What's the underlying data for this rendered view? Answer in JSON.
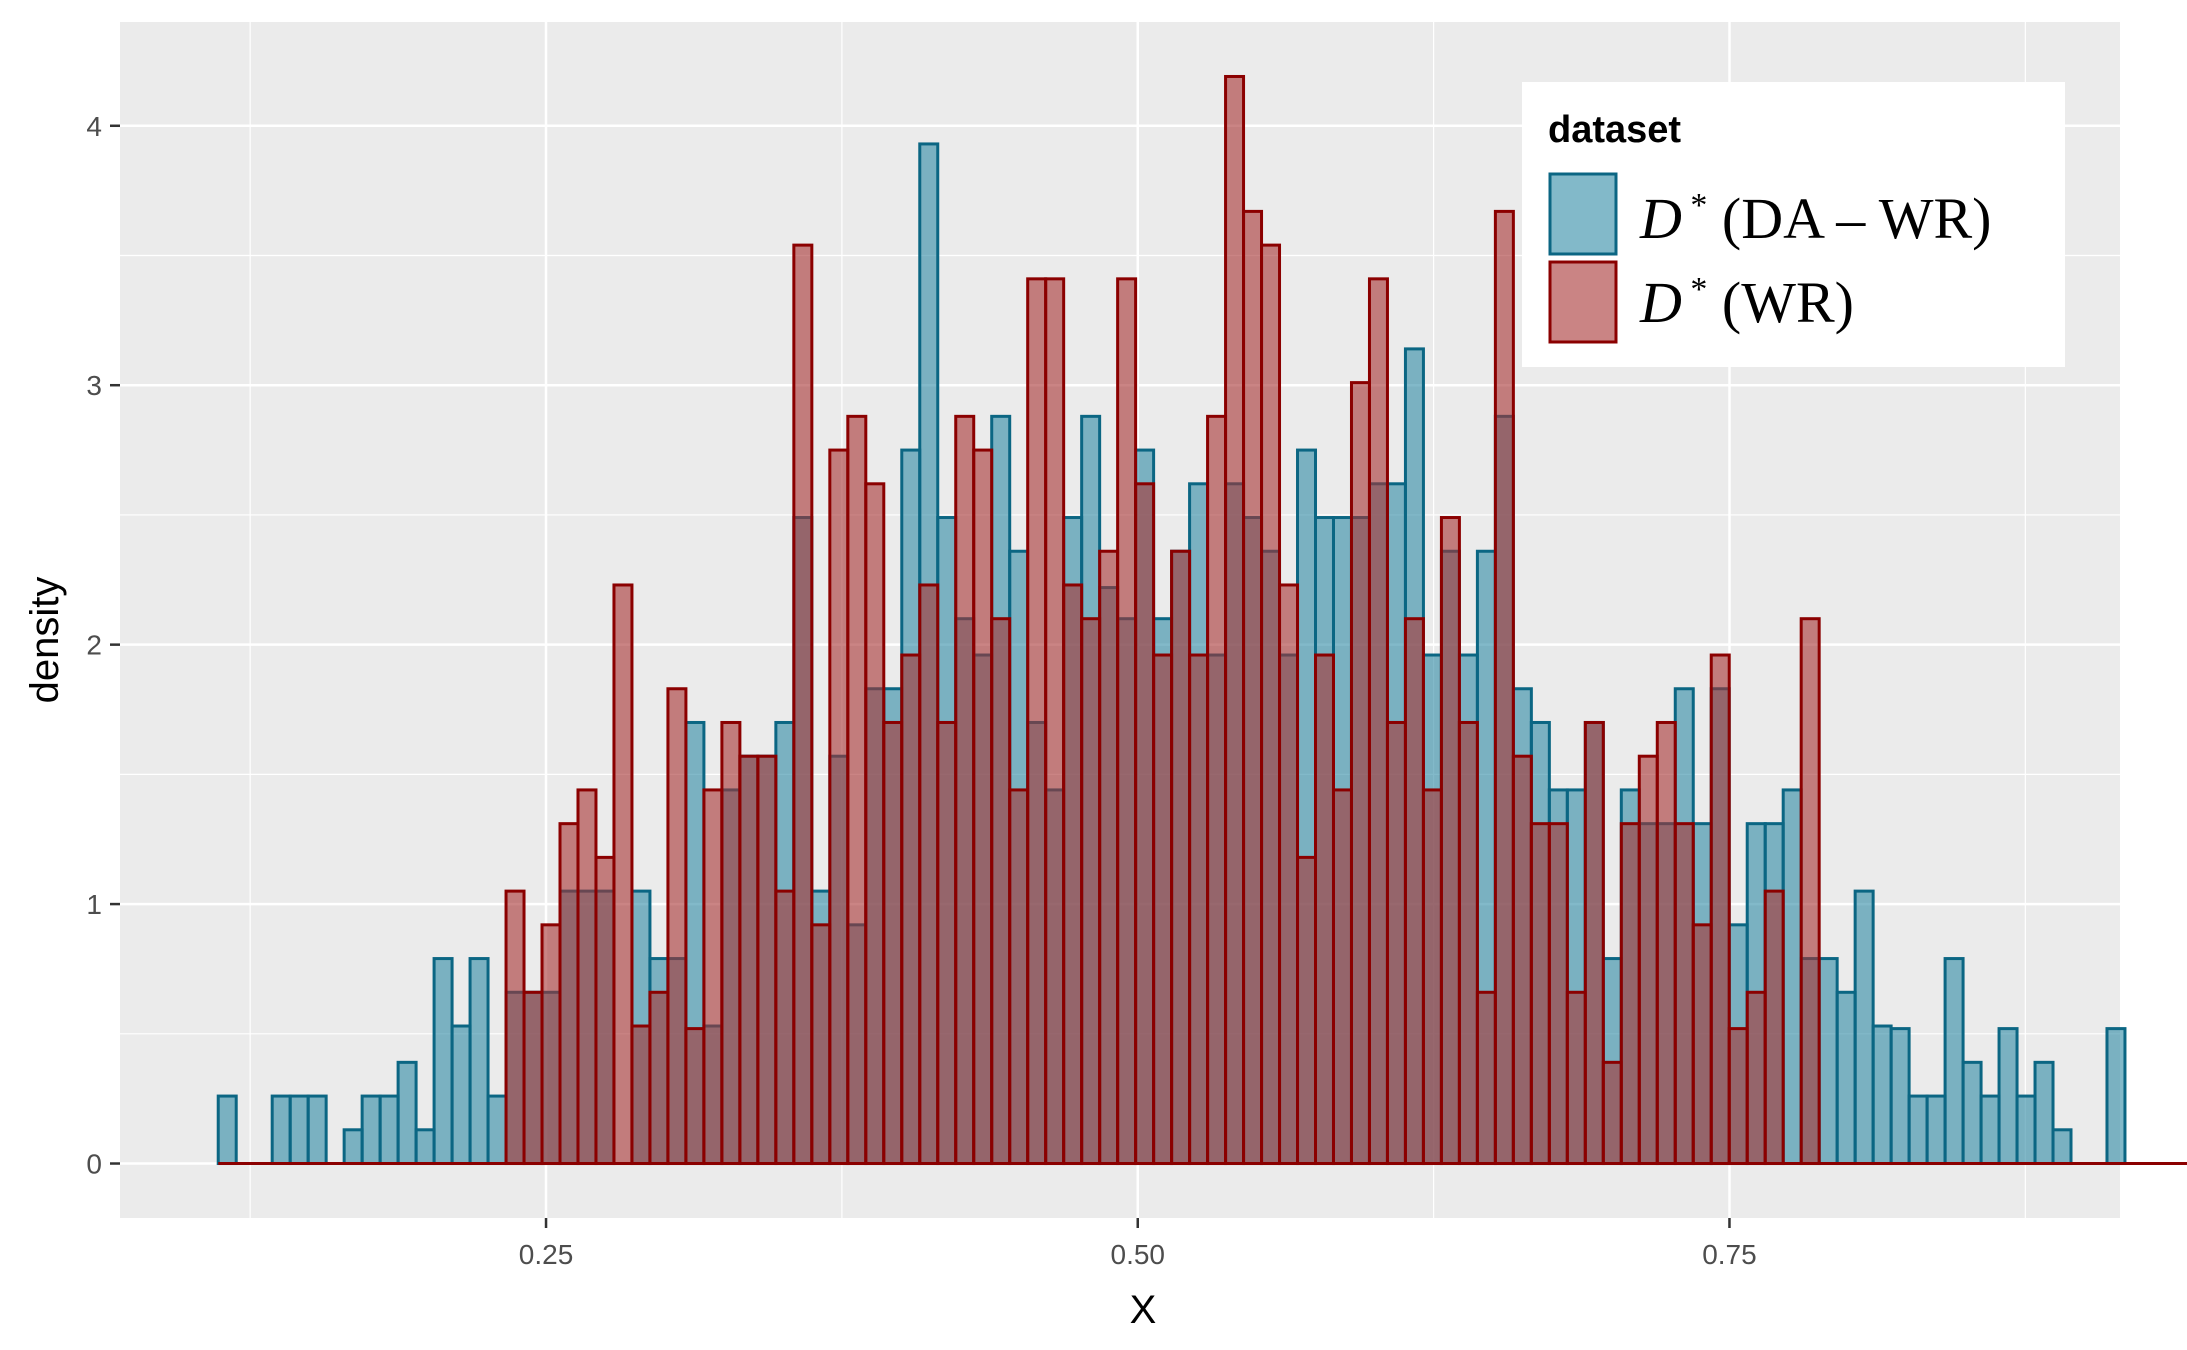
{
  "chart_data": {
    "type": "bar",
    "xlabel": "X",
    "ylabel": "density",
    "xlim": [
      0.07,
      0.915
    ],
    "ylim": [
      -0.21,
      4.4
    ],
    "x_ticks": [
      0.25,
      0.5,
      0.75
    ],
    "x_tick_labels": [
      "0.25",
      "0.50",
      "0.75"
    ],
    "y_ticks": [
      0,
      1,
      2,
      3,
      4
    ],
    "y_tick_labels": [
      "0",
      "1",
      "2",
      "3",
      "4"
    ],
    "grid": true,
    "bin_start": 0.1115,
    "bin_width": 0.0076,
    "legend": {
      "title": "dataset",
      "position": "top-right",
      "labels": [
        "D * (DA – WR)",
        "D * (WR)"
      ]
    },
    "series": [
      {
        "name": "D * (DA – WR)",
        "fill": "#2f8ba5",
        "stroke": "#0b6683",
        "values": [
          0.26,
          0,
          0,
          0.26,
          0.26,
          0.26,
          0,
          0.13,
          0.26,
          0.26,
          0.39,
          0.13,
          0.79,
          0.53,
          0.79,
          0.26,
          0.66,
          0.66,
          0.66,
          1.05,
          1.05,
          1.05,
          0,
          1.05,
          0.79,
          0.79,
          1.7,
          0.53,
          1.44,
          1.57,
          1.57,
          1.7,
          2.49,
          1.05,
          1.57,
          0.92,
          1.83,
          1.83,
          2.75,
          3.93,
          2.49,
          2.1,
          1.96,
          2.88,
          2.36,
          1.7,
          1.44,
          2.49,
          2.88,
          2.22,
          2.1,
          2.75,
          2.1,
          2.36,
          2.62,
          1.96,
          2.62,
          2.49,
          2.36,
          1.96,
          2.75,
          2.49,
          2.49,
          2.49,
          2.62,
          2.62,
          3.14,
          1.96,
          2.36,
          1.96,
          2.36,
          2.88,
          1.83,
          1.7,
          1.44,
          1.44,
          1.7,
          0.79,
          1.44,
          1.31,
          1.31,
          1.83,
          1.31,
          1.83,
          0.92,
          1.31,
          1.31,
          1.44,
          0.79,
          0.79,
          0.66,
          1.05,
          0.53,
          0.52,
          0.26,
          0.26,
          0.79,
          0.39,
          0.26,
          0.52,
          0.26,
          0.39,
          0.13,
          0,
          0,
          0.52,
          0,
          0,
          0,
          0,
          0,
          0.13
        ]
      },
      {
        "name": "D * (WR)",
        "fill": "#a63232",
        "stroke": "#8b0000",
        "values": [
          0,
          0,
          0,
          0,
          0,
          0,
          0,
          0,
          0,
          0,
          0,
          0,
          0,
          0,
          0,
          0,
          1.05,
          0.66,
          0.92,
          1.31,
          1.44,
          1.18,
          2.23,
          0.53,
          0.66,
          1.83,
          0.52,
          1.44,
          1.7,
          1.57,
          1.57,
          1.05,
          3.54,
          0.92,
          2.75,
          2.88,
          2.62,
          1.7,
          1.96,
          2.23,
          1.7,
          2.88,
          2.75,
          2.1,
          1.44,
          3.41,
          3.41,
          2.23,
          2.1,
          2.36,
          3.41,
          2.62,
          1.96,
          2.36,
          1.96,
          2.88,
          4.19,
          3.67,
          3.54,
          2.23,
          1.18,
          1.96,
          1.44,
          3.01,
          3.41,
          1.7,
          2.1,
          1.44,
          2.49,
          1.7,
          0.66,
          3.67,
          1.57,
          1.31,
          1.31,
          0.66,
          1.7,
          0.39,
          1.31,
          1.57,
          1.7,
          1.31,
          0.92,
          1.96,
          0.52,
          0.66,
          1.05,
          0,
          2.1,
          0,
          0,
          0,
          0,
          0,
          0,
          0,
          0,
          0,
          0,
          0,
          0,
          0,
          0,
          0,
          0,
          0,
          0,
          0,
          0,
          0,
          0,
          0
        ]
      }
    ]
  }
}
